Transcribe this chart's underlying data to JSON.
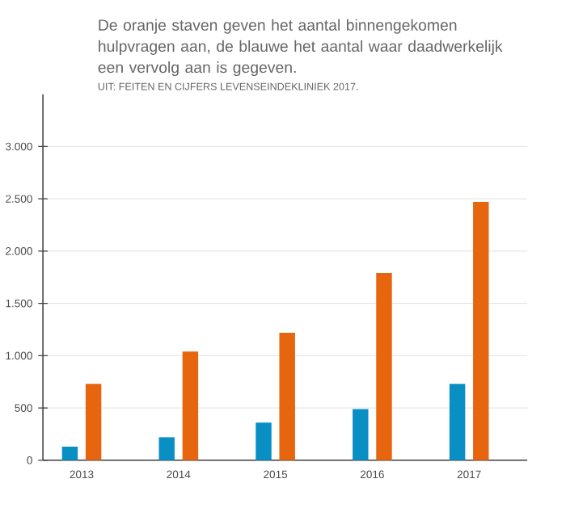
{
  "chart_data": {
    "type": "bar",
    "title": "De oranje staven geven het aantal binnengekomen hulpvragen aan, de blauwe het aantal waar daadwerkelijk een vervolg aan is gegeven.",
    "annotations": [
      "UIT: FEITEN EN CIJFERS LEVENSEINDEKLINIEK 2017."
    ],
    "categories": [
      "2013",
      "2014",
      "2015",
      "2016",
      "2017"
    ],
    "series": [
      {
        "color": "#0a8fc4",
        "values": [
          130,
          220,
          360,
          490,
          730
        ]
      },
      {
        "color": "#e8650f",
        "values": [
          730,
          1040,
          1220,
          1790,
          2470
        ]
      }
    ],
    "ylim": [
      0,
      3500
    ],
    "yticks": [
      0,
      500,
      {
        "value": 1000,
        "label": "1.000"
      },
      {
        "value": 1500,
        "label": "1.500"
      },
      {
        "value": 2000,
        "label": "2.000"
      },
      {
        "value": 2500,
        "label": "2.500"
      },
      {
        "value": 3000,
        "label": "3.000"
      }
    ],
    "grid": "y"
  }
}
